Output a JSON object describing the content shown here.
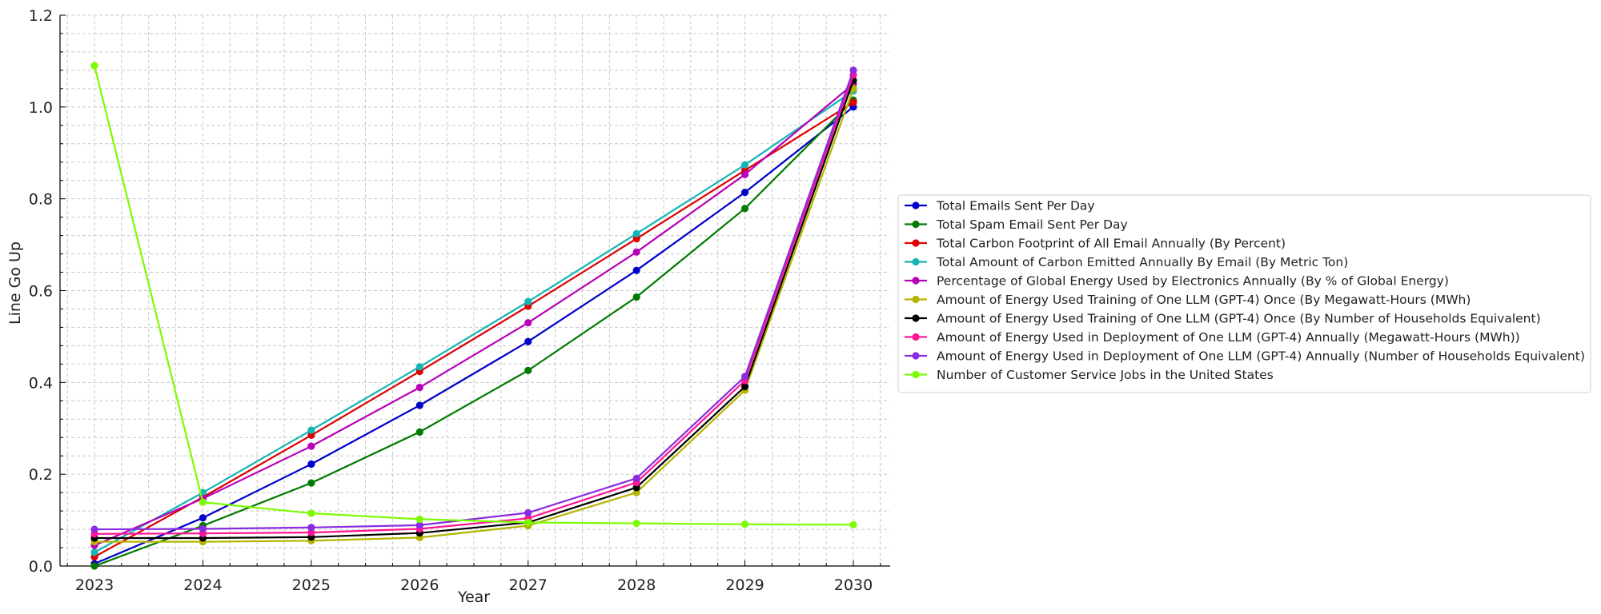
{
  "chart_data": {
    "type": "line",
    "title": "",
    "xlabel": "Year",
    "ylabel": "Line Go Up",
    "categories": [
      "2023",
      "2024",
      "2025",
      "2026",
      "2027",
      "2028",
      "2029",
      "2030"
    ],
    "yticks": [
      "0.0",
      "0.2",
      "0.4",
      "0.6",
      "0.8",
      "1.0",
      "1.2"
    ],
    "ylim": [
      0,
      1.2
    ],
    "grid": true,
    "legend_position": "right",
    "series": [
      {
        "name": "Total Emails Sent Per Day",
        "color": "#0000cc",
        "values": [
          0.005,
          0.105,
          0.222,
          0.35,
          0.489,
          0.644,
          0.814,
          1.0
        ]
      },
      {
        "name": "Total Spam Email Sent Per Day",
        "color": "#007a00",
        "values": [
          0.0,
          0.088,
          0.181,
          0.292,
          0.426,
          0.586,
          0.779,
          1.015
        ]
      },
      {
        "name": "Total Carbon Footprint of All Email Annually (By Percent)",
        "color": "#dd0000",
        "values": [
          0.02,
          0.15,
          0.285,
          0.424,
          0.566,
          0.713,
          0.862,
          1.01
        ]
      },
      {
        "name": "Total Amount of Carbon Emitted Annually By Email (By Metric Ton)",
        "color": "#13b5b5",
        "values": [
          0.03,
          0.16,
          0.296,
          0.434,
          0.576,
          0.724,
          0.874,
          1.035
        ]
      },
      {
        "name": "Percentage of Global Energy Used by Electronics Annually (By % of Global Energy)",
        "color": "#b800b8",
        "values": [
          0.045,
          0.147,
          0.261,
          0.389,
          0.53,
          0.684,
          0.853,
          1.05
        ]
      },
      {
        "name": "Amount of Energy Used Training of One LLM (GPT-4) Once  (By Megawatt-Hours (MWh)",
        "color": "#b5b500",
        "values": [
          0.053,
          0.053,
          0.055,
          0.062,
          0.088,
          0.16,
          0.383,
          1.04
        ]
      },
      {
        "name": "Amount of Energy Used Training of One LLM (GPT-4) Once  (By Number of Households Equivalent)",
        "color": "#000000",
        "values": [
          0.061,
          0.061,
          0.063,
          0.072,
          0.095,
          0.171,
          0.391,
          1.058
        ]
      },
      {
        "name": "Amount of Energy Used in Deployment of One LLM (GPT-4) Annually (Megawatt-Hours (MWh))",
        "color": "#ff1493",
        "values": [
          0.07,
          0.071,
          0.073,
          0.081,
          0.104,
          0.182,
          0.404,
          1.07
        ]
      },
      {
        "name": "Amount of Energy Used in Deployment of One LLM (GPT-4) Annually (Number of Households Equivalent)",
        "color": "#8a2be2",
        "values": [
          0.08,
          0.081,
          0.084,
          0.089,
          0.116,
          0.191,
          0.413,
          1.08
        ]
      },
      {
        "name": "Number of Customer Service Jobs in the United States",
        "color": "#7cfc00",
        "values": [
          1.09,
          0.139,
          0.115,
          0.102,
          0.095,
          0.093,
          0.091,
          0.09
        ]
      }
    ]
  }
}
